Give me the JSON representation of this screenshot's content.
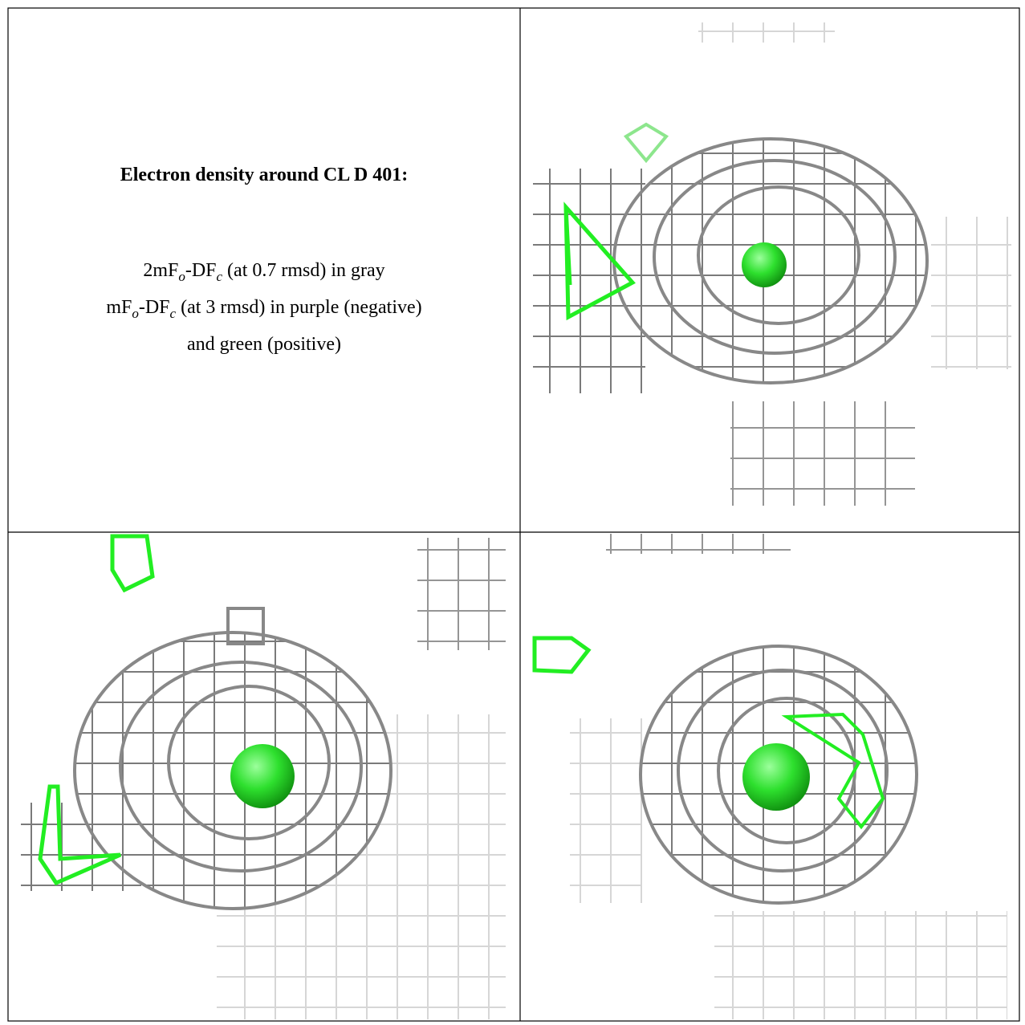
{
  "caption": {
    "title": "Electron density around CL D 401:",
    "lines": [
      [
        {
          "text": "2mF"
        },
        {
          "text": "o",
          "sub": true
        },
        {
          "text": "-DF"
        },
        {
          "text": "c",
          "sub": true
        },
        {
          "text": " (at 0.7 rmsd) in gray"
        }
      ],
      [
        {
          "text": "mF"
        },
        {
          "text": "o",
          "sub": true
        },
        {
          "text": "-DF"
        },
        {
          "text": "c",
          "sub": true
        },
        {
          "text": " (at 3 rmsd) in purple (negative)"
        }
      ],
      [
        {
          "text": "and green (positive)"
        }
      ]
    ]
  }
}
